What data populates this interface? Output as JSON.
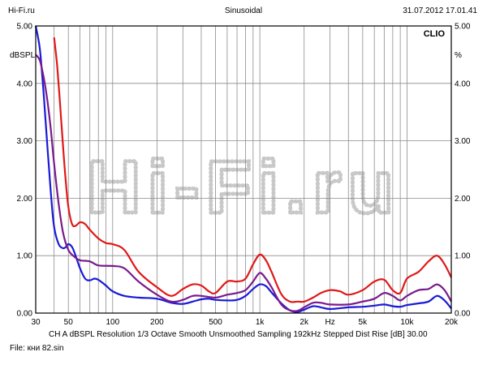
{
  "header": {
    "source": "Hi-Fi.ru",
    "mode": "Sinusoidal",
    "datetime": "31.07.2012 17.01.41"
  },
  "watermark": "Hi-Fi.ru",
  "brand": "CLIO",
  "footer": {
    "settings": "CH A   dBSPL   Resolution 1/3 Octave   Smooth Unsmoothed   Sampling 192kHz   Stepped   Dist Rise [dB] 30.00",
    "file": "File: кни 82.sin"
  },
  "chart_data": {
    "type": "line",
    "x_scale": "log",
    "xlim": [
      30,
      20000
    ],
    "ylim": [
      0,
      5
    ],
    "grid": true,
    "ylabel_left": "dBSPL",
    "ylabel_right": "%",
    "x_ticks": [
      {
        "value": 30,
        "label": "30"
      },
      {
        "value": 50,
        "label": "50"
      },
      {
        "value": 100,
        "label": "100"
      },
      {
        "value": 200,
        "label": "200"
      },
      {
        "value": 500,
        "label": "500"
      },
      {
        "value": 1000,
        "label": "1k"
      },
      {
        "value": 2000,
        "label": "2k"
      },
      {
        "value": 3000,
        "label": "Hz"
      },
      {
        "value": 5000,
        "label": "5k"
      },
      {
        "value": 10000,
        "label": "10k"
      },
      {
        "value": 20000,
        "label": "20k"
      }
    ],
    "y_ticks": [
      {
        "value": 0,
        "label": "0.00"
      },
      {
        "value": 1,
        "label": "1.00"
      },
      {
        "value": 2,
        "label": "2.00"
      },
      {
        "value": 3,
        "label": "3.00"
      },
      {
        "value": 4,
        "label": "4.00"
      },
      {
        "value": 5,
        "label": "5.00"
      }
    ],
    "series": [
      {
        "color": "#1a1ad6",
        "x": [
          30,
          32,
          34,
          36,
          38,
          40,
          43,
          46,
          48,
          50,
          53,
          56,
          60,
          65,
          70,
          75,
          80,
          90,
          100,
          120,
          150,
          200,
          250,
          300,
          350,
          400,
          450,
          500,
          600,
          700,
          800,
          900,
          1000,
          1100,
          1200,
          1400,
          1600,
          1800,
          2000,
          2300,
          2600,
          3000,
          4000,
          5000,
          6000,
          7000,
          8000,
          9000,
          10000,
          12000,
          14000,
          16000,
          18000,
          20000
        ],
        "y": [
          5.0,
          4.6,
          3.8,
          2.9,
          2.1,
          1.5,
          1.2,
          1.13,
          1.15,
          1.2,
          1.15,
          1.0,
          0.78,
          0.6,
          0.57,
          0.6,
          0.58,
          0.48,
          0.38,
          0.3,
          0.27,
          0.25,
          0.18,
          0.16,
          0.2,
          0.24,
          0.25,
          0.23,
          0.22,
          0.23,
          0.3,
          0.42,
          0.5,
          0.47,
          0.36,
          0.17,
          0.05,
          0.02,
          0.06,
          0.12,
          0.1,
          0.07,
          0.1,
          0.11,
          0.13,
          0.15,
          0.12,
          0.11,
          0.14,
          0.17,
          0.2,
          0.3,
          0.22,
          0.08
        ]
      },
      {
        "color": "#7a1a8c",
        "x": [
          30,
          32,
          34,
          36,
          38,
          40,
          43,
          46,
          50,
          55,
          60,
          70,
          80,
          100,
          120,
          150,
          200,
          250,
          300,
          350,
          400,
          500,
          600,
          700,
          800,
          900,
          1000,
          1100,
          1200,
          1400,
          1600,
          1800,
          2000,
          2300,
          2600,
          3000,
          4000,
          5000,
          6000,
          7000,
          8000,
          9000,
          10000,
          12000,
          14000,
          16000,
          18000,
          20000
        ],
        "y": [
          4.5,
          4.4,
          4.1,
          3.7,
          3.2,
          2.6,
          1.9,
          1.4,
          1.1,
          0.98,
          0.92,
          0.9,
          0.83,
          0.82,
          0.78,
          0.55,
          0.32,
          0.2,
          0.23,
          0.3,
          0.3,
          0.27,
          0.32,
          0.35,
          0.4,
          0.55,
          0.7,
          0.6,
          0.45,
          0.15,
          0.05,
          0.04,
          0.1,
          0.18,
          0.18,
          0.15,
          0.15,
          0.2,
          0.25,
          0.35,
          0.3,
          0.22,
          0.3,
          0.4,
          0.42,
          0.5,
          0.4,
          0.2
        ]
      },
      {
        "color": "#e01818",
        "x": [
          40,
          42,
          44,
          46,
          48,
          50,
          53,
          56,
          60,
          65,
          70,
          80,
          90,
          100,
          120,
          150,
          200,
          250,
          300,
          350,
          400,
          450,
          500,
          600,
          700,
          800,
          900,
          1000,
          1100,
          1200,
          1400,
          1600,
          1800,
          2000,
          2300,
          2600,
          3000,
          3500,
          4000,
          5000,
          6000,
          7000,
          8000,
          9000,
          10000,
          12000,
          14000,
          16000,
          18000,
          20000
        ],
        "y": [
          4.8,
          4.3,
          3.6,
          2.9,
          2.3,
          1.85,
          1.55,
          1.52,
          1.58,
          1.55,
          1.45,
          1.3,
          1.22,
          1.2,
          1.1,
          0.72,
          0.45,
          0.3,
          0.42,
          0.5,
          0.48,
          0.38,
          0.35,
          0.55,
          0.55,
          0.6,
          0.85,
          1.02,
          0.92,
          0.72,
          0.33,
          0.2,
          0.2,
          0.2,
          0.27,
          0.35,
          0.4,
          0.38,
          0.32,
          0.4,
          0.55,
          0.58,
          0.4,
          0.35,
          0.6,
          0.72,
          0.9,
          1.0,
          0.85,
          0.62
        ]
      }
    ]
  }
}
